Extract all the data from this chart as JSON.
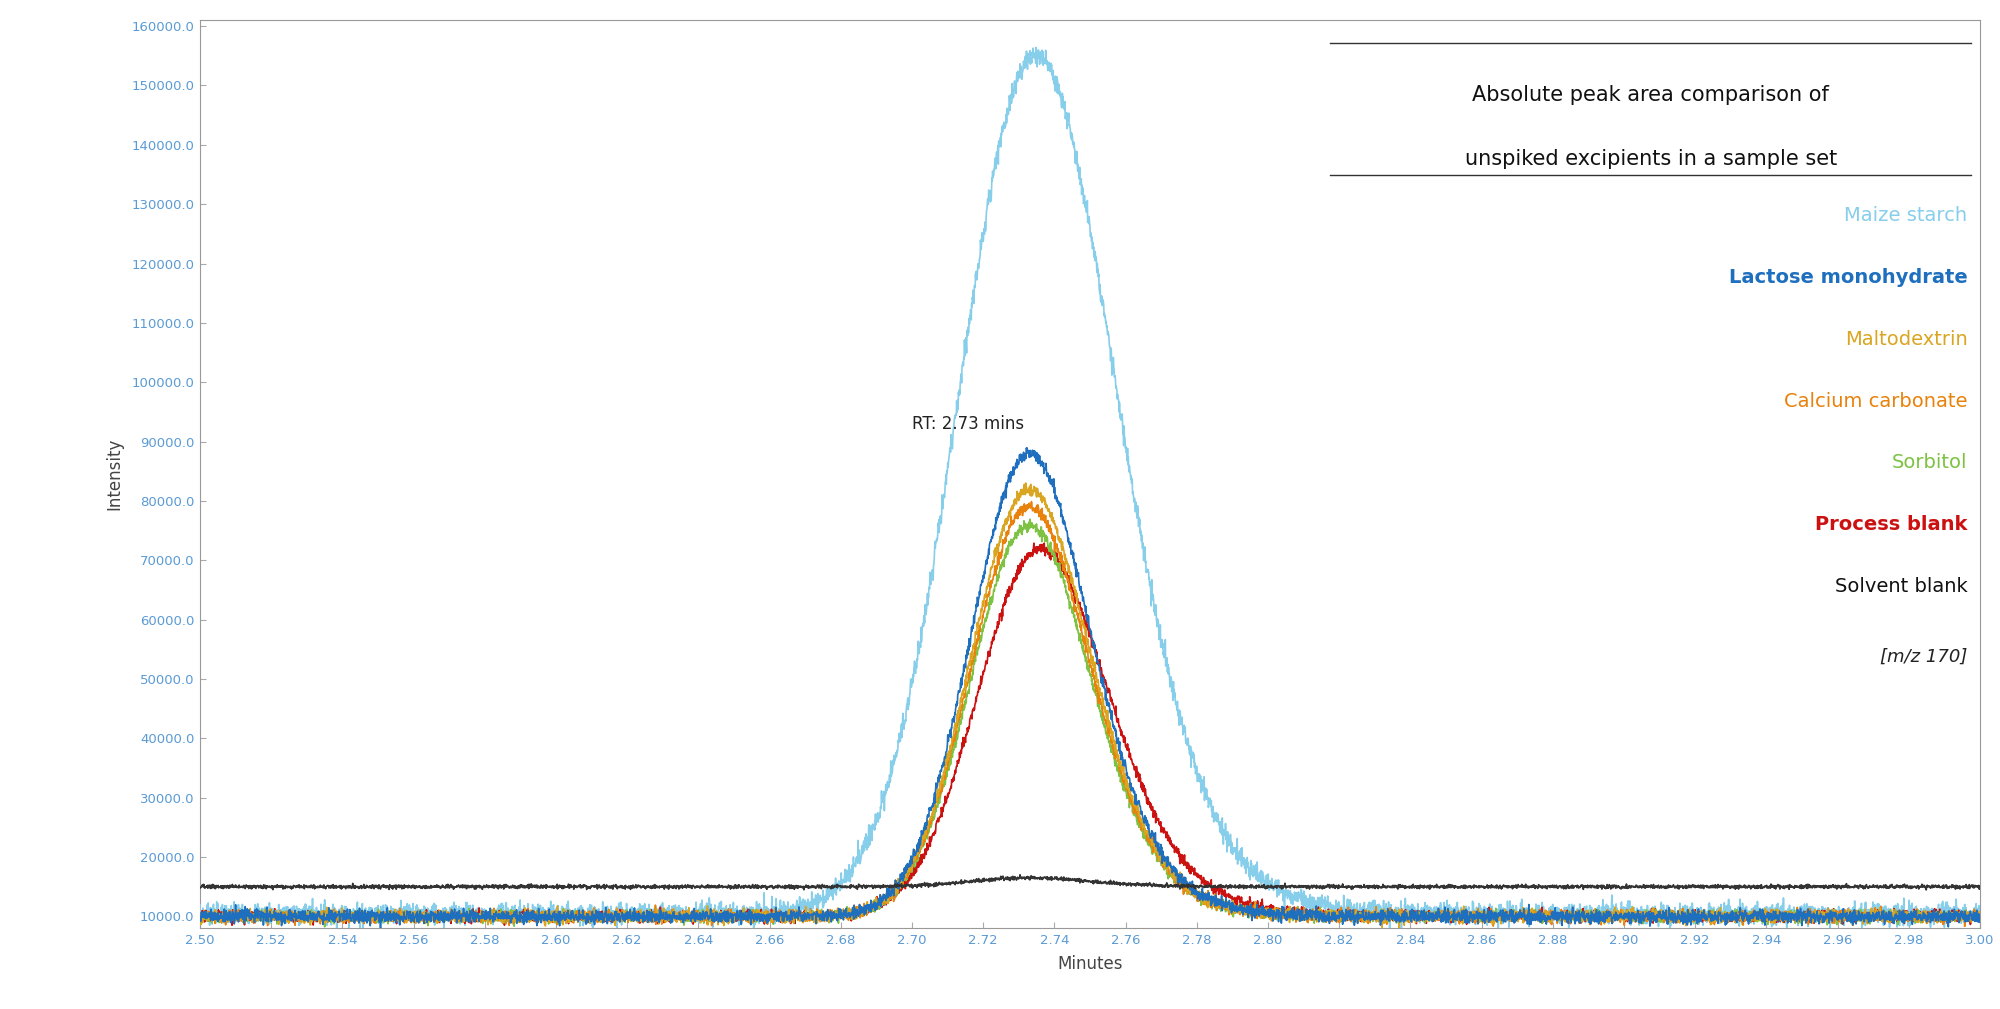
{
  "title_line1": "Absolute peak area comparison of",
  "title_line2": "unspiked excipients in a sample set",
  "xlabel": "Minutes",
  "ylabel": "Intensity",
  "annotation": "RT: 2.73 mins",
  "xmin": 2.5,
  "xmax": 3.0,
  "ymin": 8000,
  "ymax": 161000,
  "yticks": [
    10000,
    20000,
    30000,
    40000,
    50000,
    60000,
    70000,
    80000,
    90000,
    100000,
    110000,
    120000,
    130000,
    140000,
    150000,
    160000
  ],
  "xticks": [
    2.5,
    2.52,
    2.54,
    2.56,
    2.58,
    2.6,
    2.62,
    2.64,
    2.66,
    2.68,
    2.7,
    2.72,
    2.74,
    2.76,
    2.78,
    2.8,
    2.82,
    2.84,
    2.86,
    2.88,
    2.9,
    2.92,
    2.94,
    2.96,
    2.98,
    3.0
  ],
  "series": {
    "maize_starch": {
      "color": "#87CEEB",
      "peak": 155000,
      "baseline": 10500,
      "rt": 2.725,
      "sigma": 0.02,
      "tau": 0.012,
      "label": "Maize starch"
    },
    "lactose_mono": {
      "color": "#1F6FBF",
      "peak": 88000,
      "baseline": 10000,
      "rt": 2.725,
      "sigma": 0.015,
      "tau": 0.01,
      "label": "Lactose monohydrate"
    },
    "maltodextrin": {
      "color": "#DAA520",
      "peak": 82000,
      "baseline": 10000,
      "rt": 2.725,
      "sigma": 0.015,
      "tau": 0.01,
      "label": "Maltodextrin"
    },
    "calcium_carbonate": {
      "color": "#E8820C",
      "peak": 79000,
      "baseline": 10000,
      "rt": 2.725,
      "sigma": 0.015,
      "tau": 0.01,
      "label": "Calcium carbonate"
    },
    "sorbitol": {
      "color": "#7DC242",
      "peak": 76000,
      "baseline": 10000,
      "rt": 2.725,
      "sigma": 0.015,
      "tau": 0.01,
      "label": "Sorbitol"
    },
    "process_blank": {
      "color": "#CC1111",
      "peak": 72000,
      "baseline": 10000,
      "rt": 2.727,
      "sigma": 0.016,
      "tau": 0.012,
      "label": "Process blank"
    },
    "solvent_blank": {
      "color": "#333333",
      "peak": 16500,
      "baseline": 15000,
      "rt": 2.725,
      "sigma": 0.015,
      "tau": 0.01,
      "label": "Solvent blank"
    }
  },
  "mz_label": "[m/z 170]",
  "background_color": "#FFFFFF",
  "tick_color": "#5B9BD5",
  "legend_fontsize": 14,
  "title_fontsize": 15
}
